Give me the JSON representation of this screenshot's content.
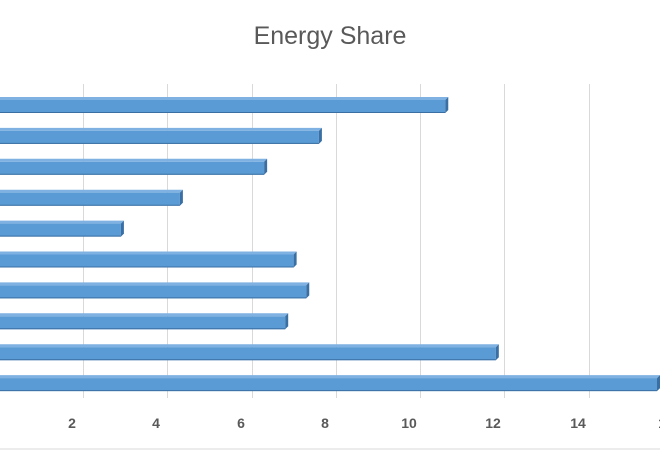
{
  "chart_data": {
    "type": "bar",
    "orientation": "horizontal",
    "title": "Energy Share",
    "xlabel": "",
    "ylabel": "",
    "x_ticks": [
      "2",
      "4",
      "6",
      "8",
      "10",
      "12",
      "14",
      "1"
    ],
    "values_top_to_bottom": [
      10.6,
      7.6,
      6.3,
      4.3,
      2.9,
      7.0,
      7.3,
      6.8,
      11.8,
      16.0
    ],
    "categories": [],
    "grid": true,
    "legend": "none",
    "colors": {
      "bar": "#5b9bd5",
      "bar_top": "#7fb2e2",
      "bar_side": "#3a6fa3",
      "grid": "#d9d9d9",
      "text": "#595959"
    }
  }
}
